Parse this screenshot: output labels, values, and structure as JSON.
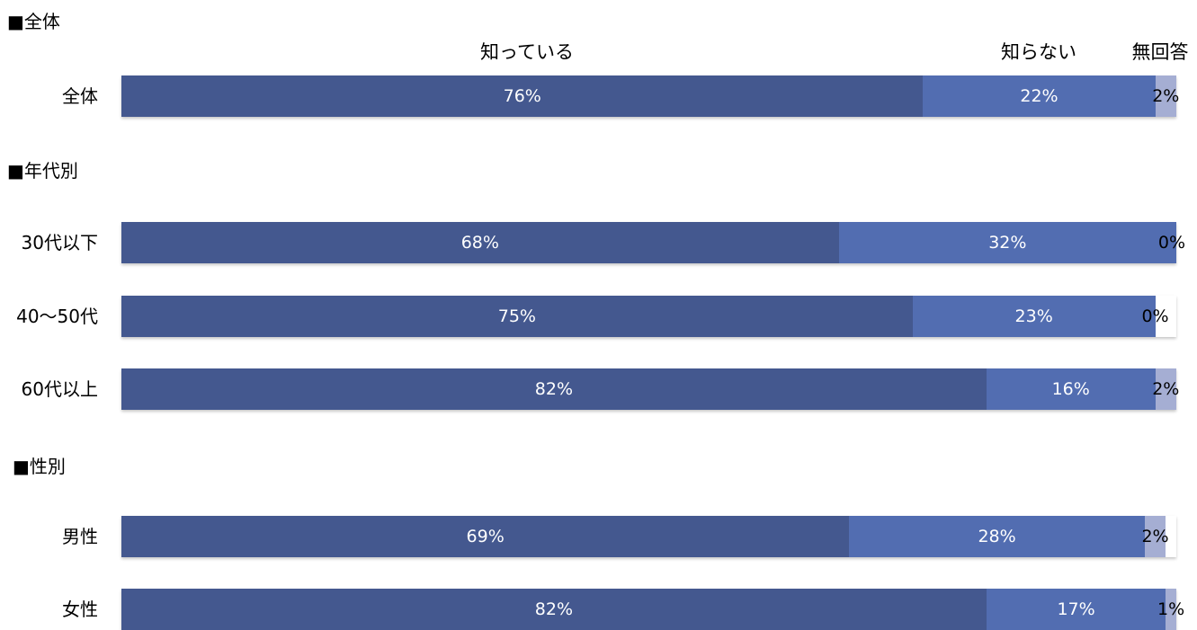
{
  "sections": [
    {
      "title": "■全体"
    },
    {
      "title": "■年代別"
    },
    {
      "title": "■性別"
    }
  ],
  "legend": [
    "知っている",
    "知らない",
    "無回答"
  ],
  "colors": {
    "know": "#44588f",
    "dont_know": "#526db1",
    "no_answer": "#a5aed3"
  },
  "chart_data": {
    "type": "bar",
    "orientation": "horizontal",
    "stacked": true,
    "percent_stacked": true,
    "categories": [
      "全体",
      "30代以下",
      "40〜50代",
      "60代以上",
      "男性",
      "女性"
    ],
    "series": [
      {
        "name": "知っている",
        "values": [
          76,
          68,
          75,
          82,
          69,
          82
        ],
        "labels": [
          "76%",
          "68%",
          "75%",
          "82%",
          "69%",
          "82%"
        ]
      },
      {
        "name": "知らない",
        "values": [
          22,
          32,
          23,
          16,
          28,
          17
        ],
        "labels": [
          "22%",
          "32%",
          "23%",
          "16%",
          "28%",
          "17%"
        ]
      },
      {
        "name": "無回答",
        "values": [
          2,
          0,
          0,
          2,
          2,
          1
        ],
        "labels": [
          "2%",
          "0%",
          "0%",
          "2%",
          "2%",
          "1%"
        ]
      }
    ],
    "xlim": [
      0,
      100
    ],
    "grid": false,
    "legend_position": "top"
  }
}
